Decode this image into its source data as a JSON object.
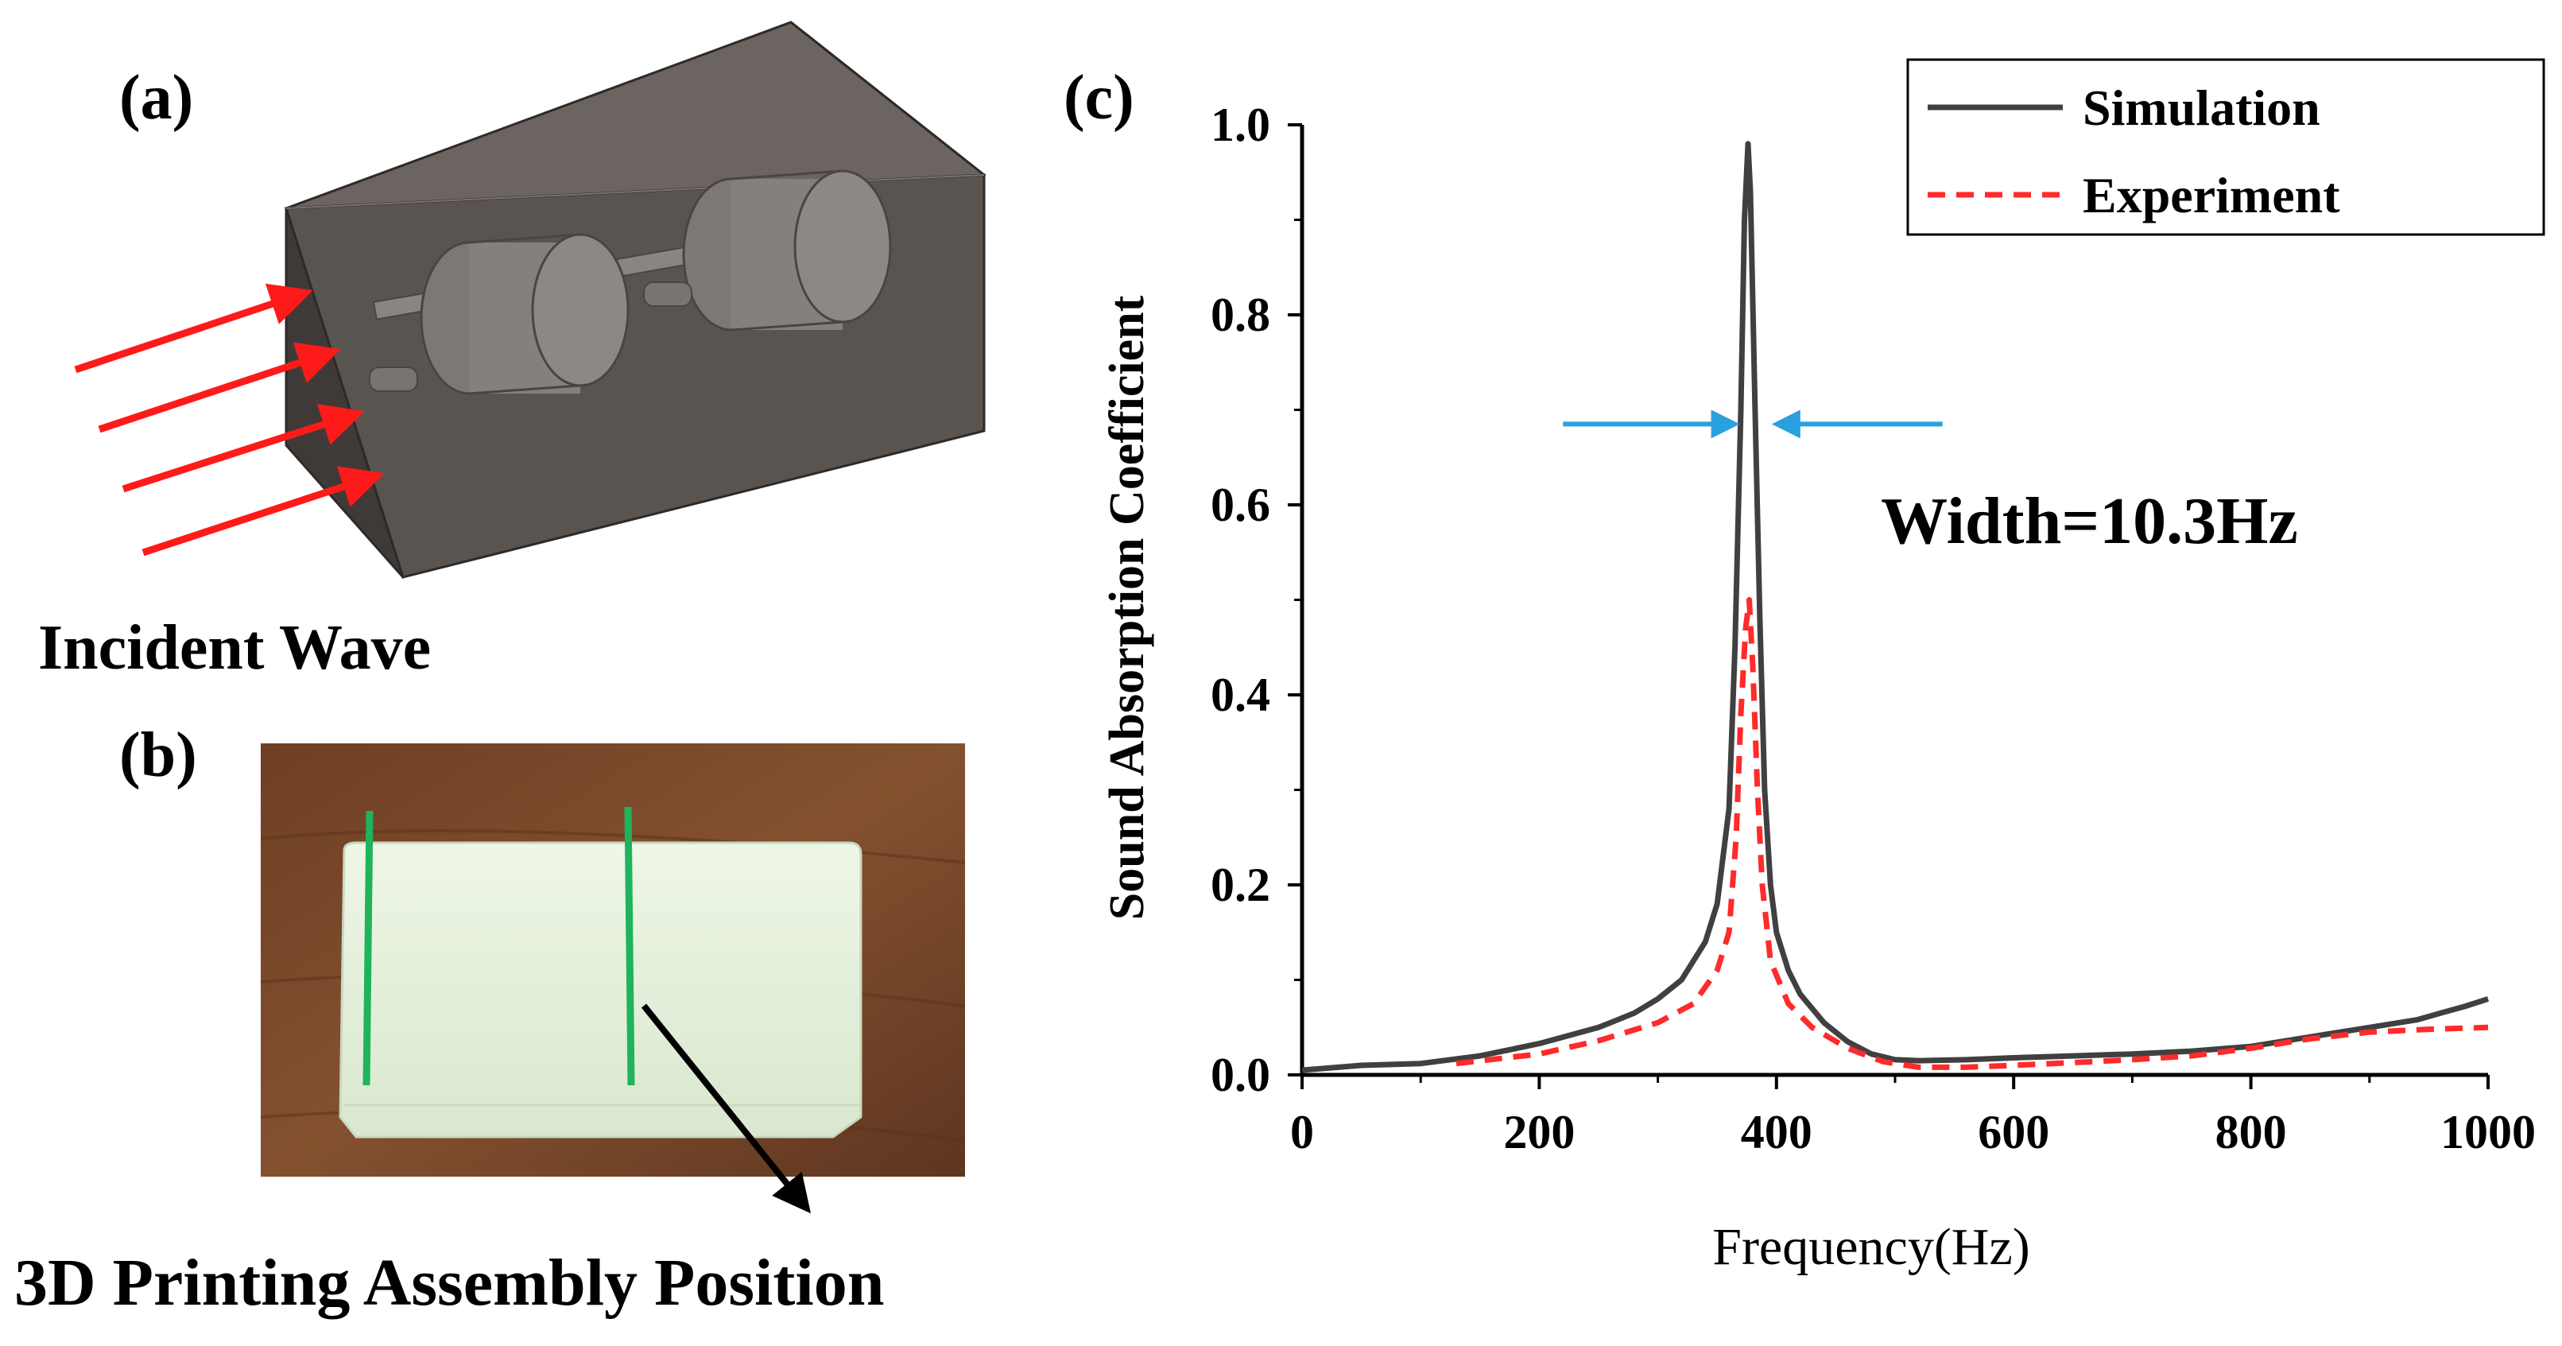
{
  "panels": {
    "a": {
      "label": "(a)",
      "caption": "Incident Wave"
    },
    "b": {
      "label": "(b)",
      "caption": "3D Printing Assembly Position"
    },
    "c": {
      "label": "(c)"
    }
  },
  "colors": {
    "simulation": "#404040",
    "experiment": "#ff2a2a",
    "width_arrows": "#2aa0df",
    "incident_arrows": "#ff1a1a",
    "assembly_lines": "#1fb35c",
    "box_face": "#5c5653",
    "table_wood": "#7a4a2c",
    "print_body": "#e6f1de"
  },
  "chart_data": {
    "type": "line",
    "xlabel": "Frequency(Hz)",
    "ylabel": "Sound Absorption Coefficient",
    "xlim": [
      0,
      1000
    ],
    "ylim": [
      0,
      1.0
    ],
    "xticks": [
      0,
      200,
      400,
      600,
      800,
      1000
    ],
    "yticks": [
      0.0,
      0.2,
      0.4,
      0.6,
      0.8,
      1.0
    ],
    "xtick_labels": [
      "0",
      "200",
      "400",
      "600",
      "800",
      "1000"
    ],
    "ytick_labels": [
      "0.0",
      "0.2",
      "0.4",
      "0.6",
      "0.8",
      "1.0"
    ],
    "legend_position": "top-right",
    "annotation": "Width=10.3Hz",
    "width_markers_hz": [
      365,
      400
    ],
    "series": [
      {
        "name": "Simulation",
        "style": "solid",
        "x": [
          0,
          50,
          100,
          150,
          200,
          250,
          280,
          300,
          320,
          340,
          350,
          360,
          365,
          370,
          373,
          376,
          378,
          382,
          386,
          390,
          395,
          400,
          410,
          420,
          440,
          460,
          480,
          500,
          520,
          560,
          600,
          650,
          700,
          750,
          800,
          850,
          900,
          940,
          960,
          980,
          1000
        ],
        "y": [
          0.005,
          0.01,
          0.012,
          0.02,
          0.033,
          0.05,
          0.065,
          0.08,
          0.1,
          0.14,
          0.18,
          0.28,
          0.45,
          0.7,
          0.9,
          0.98,
          0.93,
          0.7,
          0.48,
          0.3,
          0.2,
          0.15,
          0.11,
          0.085,
          0.055,
          0.035,
          0.022,
          0.016,
          0.015,
          0.016,
          0.018,
          0.02,
          0.022,
          0.025,
          0.03,
          0.04,
          0.05,
          0.058,
          0.065,
          0.072,
          0.08
        ]
      },
      {
        "name": "Experiment",
        "style": "dashed",
        "x": [
          130,
          200,
          250,
          300,
          330,
          350,
          360,
          366,
          370,
          374,
          377,
          380,
          384,
          388,
          395,
          410,
          430,
          460,
          490,
          520,
          560,
          600,
          650,
          700,
          750,
          800,
          850,
          900,
          950,
          1000
        ],
        "y": [
          0.012,
          0.022,
          0.036,
          0.055,
          0.075,
          0.11,
          0.15,
          0.25,
          0.38,
          0.47,
          0.5,
          0.43,
          0.3,
          0.2,
          0.12,
          0.075,
          0.05,
          0.028,
          0.014,
          0.008,
          0.008,
          0.01,
          0.013,
          0.016,
          0.02,
          0.028,
          0.038,
          0.045,
          0.048,
          0.05
        ]
      }
    ]
  }
}
